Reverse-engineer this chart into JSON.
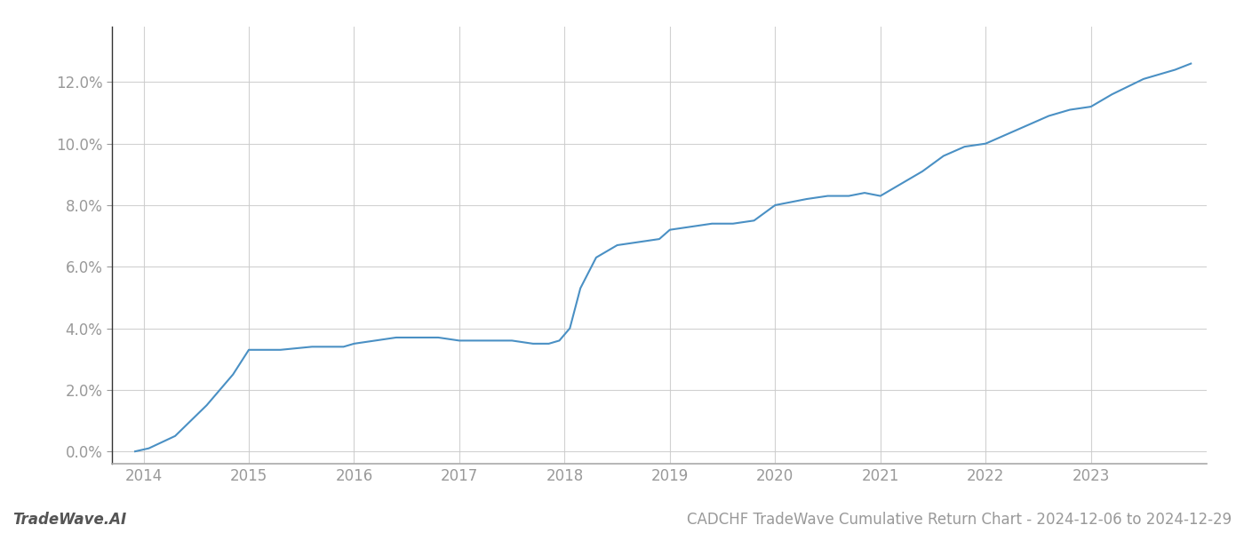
{
  "title": "CADCHF TradeWave Cumulative Return Chart - 2024-12-06 to 2024-12-29",
  "watermark": "TradeWave.AI",
  "line_color": "#4a90c4",
  "background_color": "#ffffff",
  "grid_color": "#cccccc",
  "x_values": [
    2013.92,
    2014.05,
    2014.3,
    2014.6,
    2014.85,
    2015.0,
    2015.15,
    2015.3,
    2015.6,
    2015.9,
    2016.0,
    2016.2,
    2016.4,
    2016.6,
    2016.8,
    2017.0,
    2017.15,
    2017.3,
    2017.5,
    2017.7,
    2017.85,
    2017.95,
    2018.05,
    2018.15,
    2018.3,
    2018.5,
    2018.7,
    2018.9,
    2019.0,
    2019.2,
    2019.4,
    2019.6,
    2019.8,
    2020.0,
    2020.15,
    2020.3,
    2020.5,
    2020.7,
    2020.85,
    2021.0,
    2021.2,
    2021.4,
    2021.6,
    2021.8,
    2022.0,
    2022.2,
    2022.4,
    2022.6,
    2022.8,
    2023.0,
    2023.2,
    2023.5,
    2023.8,
    2023.95
  ],
  "y_values": [
    0.0,
    0.001,
    0.005,
    0.015,
    0.025,
    0.033,
    0.033,
    0.033,
    0.034,
    0.034,
    0.035,
    0.036,
    0.037,
    0.037,
    0.037,
    0.036,
    0.036,
    0.036,
    0.036,
    0.035,
    0.035,
    0.036,
    0.04,
    0.053,
    0.063,
    0.067,
    0.068,
    0.069,
    0.072,
    0.073,
    0.074,
    0.074,
    0.075,
    0.08,
    0.081,
    0.082,
    0.083,
    0.083,
    0.084,
    0.083,
    0.087,
    0.091,
    0.096,
    0.099,
    0.1,
    0.103,
    0.106,
    0.109,
    0.111,
    0.112,
    0.116,
    0.121,
    0.124,
    0.126
  ],
  "xlim": [
    2013.7,
    2024.1
  ],
  "ylim": [
    -0.004,
    0.138
  ],
  "xticks": [
    2014,
    2015,
    2016,
    2017,
    2018,
    2019,
    2020,
    2021,
    2022,
    2023
  ],
  "yticks": [
    0.0,
    0.02,
    0.04,
    0.06,
    0.08,
    0.1,
    0.12
  ],
  "line_width": 1.5,
  "tick_label_color": "#999999",
  "tick_label_fontsize": 12,
  "title_fontsize": 12,
  "watermark_fontsize": 12,
  "spine_color": "#aaaaaa",
  "left_spine_color": "#333333"
}
